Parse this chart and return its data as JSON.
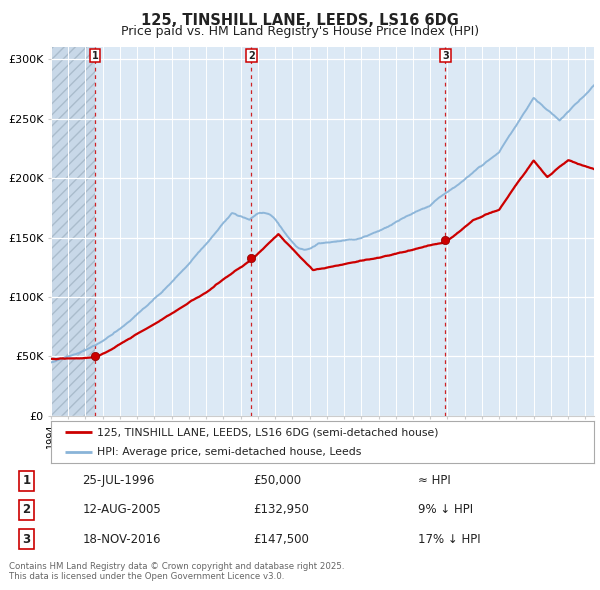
{
  "title1": "125, TINSHILL LANE, LEEDS, LS16 6DG",
  "title2": "Price paid vs. HM Land Registry's House Price Index (HPI)",
  "ylim": [
    0,
    310000
  ],
  "yticks": [
    0,
    50000,
    100000,
    150000,
    200000,
    250000,
    300000
  ],
  "ytick_labels": [
    "£0",
    "£50K",
    "£100K",
    "£150K",
    "£200K",
    "£250K",
    "£300K"
  ],
  "xstart": 1994,
  "xend": 2025.5,
  "hpi_color": "#8ab4d8",
  "price_color": "#cc0000",
  "bg_color": "#dce9f5",
  "grid_color": "#ffffff",
  "vline_color": "#cc0000",
  "purchase_years": [
    1996.56,
    2005.62,
    2016.88
  ],
  "purchase_prices": [
    50000,
    132950,
    147500
  ],
  "legend_line1": "125, TINSHILL LANE, LEEDS, LS16 6DG (semi-detached house)",
  "legend_line2": "HPI: Average price, semi-detached house, Leeds",
  "table_data": [
    [
      "1",
      "25-JUL-1996",
      "£50,000",
      "≈ HPI"
    ],
    [
      "2",
      "12-AUG-2005",
      "£132,950",
      "9% ↓ HPI"
    ],
    [
      "3",
      "18-NOV-2016",
      "£147,500",
      "17% ↓ HPI"
    ]
  ],
  "footnote": "Contains HM Land Registry data © Crown copyright and database right 2025.\nThis data is licensed under the Open Government Licence v3.0."
}
